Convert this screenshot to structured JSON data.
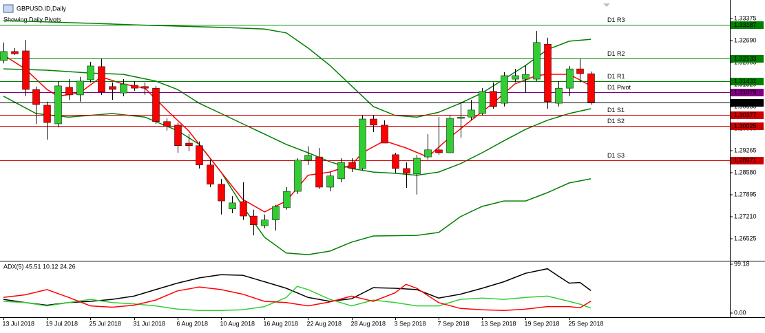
{
  "chart_data": [
    {
      "type": "candlestick",
      "title": "GBPUSD.ID,Daily",
      "subtitle": "Showing Daily Pivots",
      "categories": [
        "13 Jul 2018",
        null,
        null,
        null,
        "19 Jul 2018",
        null,
        null,
        null,
        "25 Jul 2018",
        null,
        null,
        null,
        "31 Jul 2018",
        null,
        null,
        null,
        "6 Aug 2018",
        null,
        null,
        null,
        "10 Aug 2018",
        null,
        null,
        null,
        "16 Aug 2018",
        null,
        null,
        null,
        "22 Aug 2018",
        null,
        null,
        null,
        "28 Aug 2018",
        null,
        null,
        null,
        "3 Sep 2018",
        null,
        null,
        null,
        "7 Sep 2018",
        null,
        null,
        null,
        "13 Sep 2018",
        null,
        null,
        null,
        "19 Sep 2018",
        null,
        null,
        null,
        "25 Sep 2018",
        null,
        null
      ],
      "open": [
        1.3207,
        1.3235,
        1.3237,
        1.3117,
        1.3068,
        1.301,
        1.3124,
        1.31,
        1.3147,
        1.3188,
        1.3126,
        1.3106,
        1.313,
        1.3126,
        1.3121,
        1.3017,
        1.3006,
        1.295,
        1.2942,
        1.2882,
        1.2822,
        1.2745,
        1.2768,
        1.2723,
        1.2693,
        1.2711,
        1.2749,
        1.28,
        1.2897,
        1.2907,
        1.2813,
        1.2839,
        1.289,
        1.2871,
        1.3025,
        1.3006,
        1.2914,
        1.2871,
        1.2854,
        1.2907,
        1.2929,
        1.292,
        1.3027,
        1.3031,
        1.3042,
        1.3111,
        1.3074,
        1.3149,
        1.3149,
        1.3149,
        1.3258,
        1.3074,
        1.3121,
        1.3181,
        1.3166
      ],
      "high": [
        1.3263,
        1.3246,
        1.3271,
        1.3126,
        1.3079,
        1.3143,
        1.3149,
        1.3156,
        1.3203,
        1.3213,
        1.3139,
        1.3149,
        1.3143,
        1.3139,
        1.3128,
        1.3027,
        1.3014,
        1.2978,
        1.2955,
        1.2899,
        1.2839,
        1.2785,
        1.2828,
        1.2743,
        1.2728,
        1.2758,
        1.2813,
        1.2903,
        1.294,
        1.2935,
        1.286,
        1.2903,
        1.2903,
        1.3036,
        1.3038,
        1.3021,
        1.292,
        1.289,
        1.2914,
        1.2978,
        1.3031,
        1.3036,
        1.3079,
        1.3085,
        1.3121,
        1.3139,
        1.3171,
        1.3181,
        1.3192,
        1.3299,
        1.3278,
        1.3143,
        1.319,
        1.3213,
        1.3173
      ],
      "low": [
        1.3198,
        1.3224,
        1.3096,
        1.301,
        1.2961,
        1.2999,
        1.3085,
        1.3079,
        1.3139,
        1.31,
        1.3085,
        1.3096,
        1.3113,
        1.31,
        1.301,
        1.2989,
        1.292,
        1.2925,
        1.2871,
        1.2813,
        1.2728,
        1.2732,
        1.2711,
        1.2663,
        1.2685,
        1.2678,
        1.2743,
        1.2792,
        1.2882,
        1.2807,
        1.28,
        1.2828,
        1.286,
        1.2865,
        1.2984,
        1.295,
        1.2856,
        1.2811,
        1.279,
        1.2899,
        1.2914,
        1.292,
        1.2967,
        1.3021,
        1.3036,
        1.3057,
        1.3064,
        1.3139,
        1.3106,
        1.3143,
        1.3057,
        1.3064,
        1.3096,
        1.3139,
        1.307
      ],
      "close": [
        1.3235,
        1.3228,
        1.3117,
        1.307,
        1.3014,
        1.3128,
        1.31,
        1.3143,
        1.319,
        1.3109,
        1.3117,
        1.3134,
        1.3121,
        1.3121,
        1.3017,
        1.3002,
        1.2942,
        1.2942,
        1.2882,
        1.2822,
        1.277,
        1.2764,
        1.2723,
        1.2696,
        1.2711,
        1.2753,
        1.28,
        1.2897,
        1.2912,
        1.2813,
        1.2848,
        1.289,
        1.2871,
        1.3025,
        1.3006,
        1.295,
        1.2871,
        1.2856,
        1.2903,
        1.2929,
        1.292,
        1.3027,
        1.3031,
        1.3053,
        1.3111,
        1.3064,
        1.316,
        1.316,
        1.3164,
        1.3263,
        1.3079,
        1.3121,
        1.3181,
        1.3166,
        1.3077
      ],
      "up_color": "#32cd32",
      "down_color": "#ff0000",
      "ylim": [
        1.25861,
        1.33846
      ],
      "yticks": [
        1.33375,
        {
          "value": 1.3269,
          "label": "1.32690"
        },
        1.32005,
        {
          "value": 1.3132,
          "label": "1.31320"
        },
        1.30635,
        {
          "value": 1.2995,
          "label": "1.29950"
        },
        1.29265,
        {
          "value": 1.2858,
          "label": "1.28580"
        },
        1.27895,
        {
          "value": 1.2721,
          "label": "1.27210"
        },
        1.26525
      ],
      "overlays": [
        {
          "color": "#008000",
          "x": [
            0,
            4,
            8,
            12,
            16,
            20,
            24,
            26,
            28,
            30,
            32,
            34,
            36,
            38,
            40,
            42,
            44,
            46,
            48,
            50,
            52,
            54
          ],
          "values": [
            1.3331,
            1.3327,
            1.3323,
            1.3318,
            1.3314,
            1.331,
            1.3305,
            1.3293,
            1.3246,
            1.3192,
            1.3128,
            1.3064,
            1.3036,
            1.3031,
            1.3046,
            1.3074,
            1.3106,
            1.3149,
            1.3192,
            1.3241,
            1.3267,
            1.3273
          ]
        },
        {
          "color": "#008000",
          "x": [
            0,
            4,
            8,
            11,
            14,
            16,
            18,
            20,
            22,
            24,
            26,
            28,
            30,
            32,
            34,
            36,
            38,
            40,
            42,
            44,
            46,
            48,
            50,
            52,
            54
          ],
          "values": [
            1.3181,
            1.3177,
            1.3168,
            1.3164,
            1.3143,
            1.3117,
            1.3074,
            1.3042,
            1.301,
            1.2978,
            1.2946,
            1.292,
            1.2892,
            1.2871,
            1.286,
            1.2856,
            1.285,
            1.286,
            1.2886,
            1.292,
            1.2957,
            1.2993,
            1.3021,
            1.3042,
            1.3057
          ]
        },
        {
          "color": "#008000",
          "x": [
            0,
            3,
            6,
            10,
            13,
            16,
            18,
            20,
            22,
            24,
            26,
            28,
            30,
            32,
            34,
            38,
            40,
            42,
            44,
            46,
            48,
            50,
            52,
            54
          ],
          "values": [
            1.3096,
            1.3042,
            1.3031,
            1.3042,
            1.3031,
            1.2989,
            1.2946,
            1.286,
            1.2753,
            1.2657,
            1.2608,
            1.2603,
            1.2614,
            1.2642,
            1.2661,
            1.2663,
            1.2672,
            1.2721,
            1.2753,
            1.277,
            1.277,
            1.2796,
            1.2826,
            1.2839
          ]
        },
        {
          "color": "#ff0000",
          "x": [
            0,
            2,
            4,
            5,
            7,
            9,
            11,
            13,
            15,
            17,
            19,
            21,
            22,
            24,
            26,
            28,
            30,
            32,
            33,
            35,
            37,
            39,
            41,
            43,
            45,
            47,
            49,
            50,
            52,
            54
          ],
          "values": [
            1.3224,
            1.3181,
            1.3117,
            1.3096,
            1.3106,
            1.3156,
            1.3134,
            1.3121,
            1.3053,
            1.2989,
            1.2903,
            1.2817,
            1.2775,
            1.2736,
            1.277,
            1.285,
            1.286,
            1.2882,
            1.292,
            1.2957,
            1.2935,
            1.2907,
            1.2967,
            1.3021,
            1.3074,
            1.3134,
            1.316,
            1.3164,
            1.3164,
            1.3128
          ]
        }
      ],
      "levels": [
        {
          "label": "D1 R3",
          "value": 1.33187,
          "color": "#008000"
        },
        {
          "label": "D1 R2",
          "value": 1.32133,
          "color": "#008000"
        },
        {
          "label": "D1 R1",
          "value": 1.31431,
          "color": "#008000"
        },
        {
          "label": "D1 Pivot",
          "value": 1.31079,
          "color": "#800080"
        },
        {
          "label": "D1 S1",
          "value": 1.30377,
          "color": "#cc0000"
        },
        {
          "label": "D1 S2",
          "value": 1.30025,
          "color": "#cc0000"
        },
        {
          "label": "D1 S3",
          "value": 1.28971,
          "color": "#cc0000"
        }
      ],
      "last_price": 1.30766,
      "last_price_color": "#000000"
    },
    {
      "type": "line",
      "title": "ADX(5) 45.51 10.12 24.26",
      "ylim": [
        0,
        99.18
      ],
      "yticks": [
        99.18,
        {
          "value": 0,
          "label": "0.00"
        }
      ],
      "series": [
        {
          "color": "#000000",
          "x": [
            0,
            2,
            4,
            6,
            8,
            10,
            12,
            14,
            16,
            18,
            20,
            22,
            24,
            26,
            28,
            30,
            32,
            34,
            36,
            38,
            40,
            42,
            44,
            46,
            48,
            50,
            51,
            52,
            53,
            54
          ],
          "values": [
            27.8,
            21.2,
            15.9,
            21.2,
            23.8,
            27.8,
            34.4,
            47.6,
            60.8,
            71.4,
            78.0,
            76.7,
            63.5,
            50.3,
            31.7,
            23.8,
            29.1,
            51.6,
            50.3,
            47.6,
            30.4,
            38.3,
            50.3,
            63.5,
            80.7,
            89.9,
            75.0,
            60.8,
            62.0,
            45.5
          ]
        },
        {
          "color": "#32cd32",
          "x": [
            0,
            2,
            4,
            6,
            8,
            10,
            12,
            14,
            16,
            18,
            20,
            22,
            24,
            26,
            27,
            28,
            30,
            32,
            34,
            36,
            38,
            40,
            42,
            44,
            46,
            48,
            50,
            52,
            53,
            54
          ],
          "values": [
            23.8,
            21.2,
            14.5,
            21.2,
            27.8,
            21.2,
            18.5,
            14.5,
            7.9,
            5.3,
            5.3,
            6.6,
            13.2,
            31.7,
            54.2,
            47.6,
            27.8,
            14.5,
            26.4,
            21.2,
            14.5,
            14.5,
            27.8,
            30.4,
            27.8,
            31.7,
            34.4,
            23.8,
            18.0,
            10.1
          ]
        },
        {
          "color": "#ff0000",
          "x": [
            0,
            2,
            4,
            6,
            8,
            10,
            12,
            14,
            16,
            18,
            20,
            22,
            24,
            26,
            28,
            30,
            32,
            34,
            36,
            37,
            38,
            40,
            42,
            44,
            46,
            48,
            50,
            52,
            53,
            54
          ],
          "values": [
            31.7,
            37.0,
            47.6,
            31.7,
            14.5,
            11.9,
            15.9,
            26.4,
            45.0,
            52.9,
            47.6,
            38.3,
            23.8,
            21.2,
            14.5,
            22.5,
            34.4,
            23.8,
            41.0,
            58.2,
            50.3,
            21.2,
            9.3,
            6.6,
            5.3,
            7.9,
            13.2,
            13.2,
            10.6,
            24.3
          ]
        }
      ]
    }
  ]
}
